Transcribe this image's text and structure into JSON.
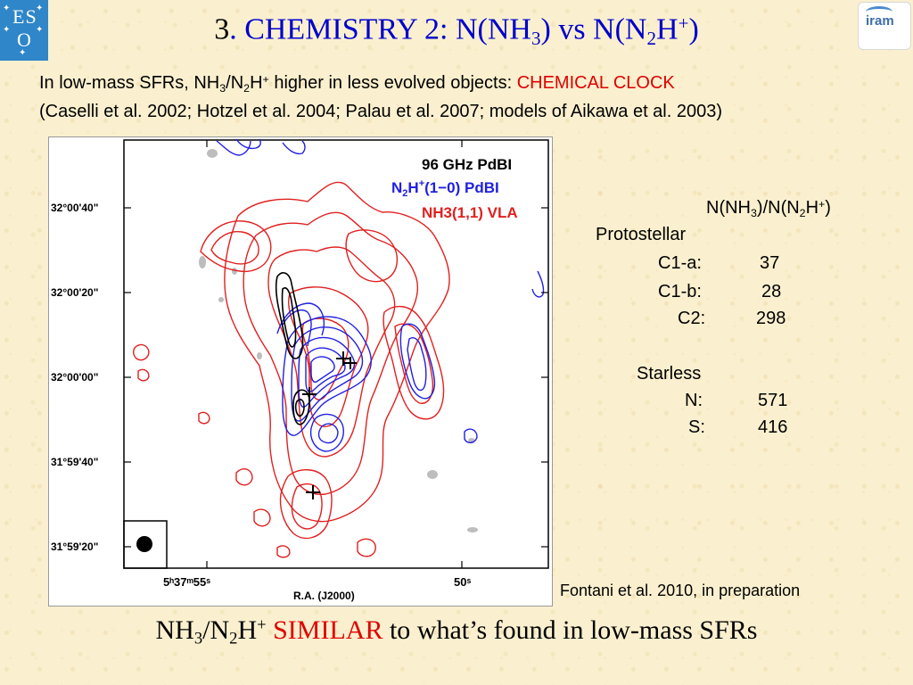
{
  "title": {
    "number": "3",
    "text_a": ". CHEMISTRY 2: N(NH",
    "sub_a": "3",
    "text_b": ") vs N(N",
    "sub_b": "2",
    "text_c": "H",
    "sup_c": "+",
    "text_d": ")"
  },
  "intro": {
    "line1_a": "In low-mass SFRs, NH",
    "line1_sub1": "3",
    "line1_b": "/N",
    "line1_sub2": "2",
    "line1_c": "H",
    "line1_sup": "+",
    "line1_d": " higher in less evolved objects: ",
    "line1_highlight": "CHEMICAL CLOCK",
    "line2": "(Caselli et al. 2002; Hotzel et al. 2004; Palau et al. 2007; models of Aikawa et al. 2003)"
  },
  "figure": {
    "legend_1": "96  GHz  PdBI",
    "legend_2a": "N",
    "legend_2sub": "2",
    "legend_2b": "H",
    "legend_2sup": "+",
    "legend_2c": "(1−0)  PdBI",
    "legend_3": "NH3(1,1)  VLA",
    "y_ticks": [
      "32°00'40\"",
      "32°00'20\"",
      "32°00'00\"",
      "31°59'40\"",
      "31°59'20\""
    ],
    "x_tick_1": "5ʰ37ᵐ55ˢ",
    "x_tick_2": "50ˢ",
    "x_label": "R.A. (J2000)",
    "colors": {
      "n2h": "#2020e0",
      "nh3": "#e02020",
      "continuum": "#000000",
      "grey": "#b0b0b0"
    }
  },
  "ratio_table": {
    "header_a": "N(NH",
    "header_sub1": "3",
    "header_b": ")/N(N",
    "header_sub2": "2",
    "header_c": "H",
    "header_sup": "+",
    "header_d": ")",
    "group_1": "Protostellar",
    "rows_1": [
      {
        "name": "C1-a:",
        "value": "37"
      },
      {
        "name": "C1-b:",
        "value": "28"
      },
      {
        "name": "C2:",
        "value": "298"
      }
    ],
    "group_2": "Starless",
    "rows_2": [
      {
        "name": "N:",
        "value": "571"
      },
      {
        "name": "S:",
        "value": "416"
      }
    ]
  },
  "citation": "Fontani et al. 2010, in preparation",
  "conclusion": {
    "a": "NH",
    "sub1": "3",
    "b": "/N",
    "sub2": "2",
    "c": "H",
    "sup": "+",
    "highlight": "SIMILAR",
    "d": " to what’s found in low-mass SFRs"
  },
  "logos": {
    "left": "ESO",
    "left_line1": "ES",
    "left_line2": "O",
    "right": "iram"
  }
}
